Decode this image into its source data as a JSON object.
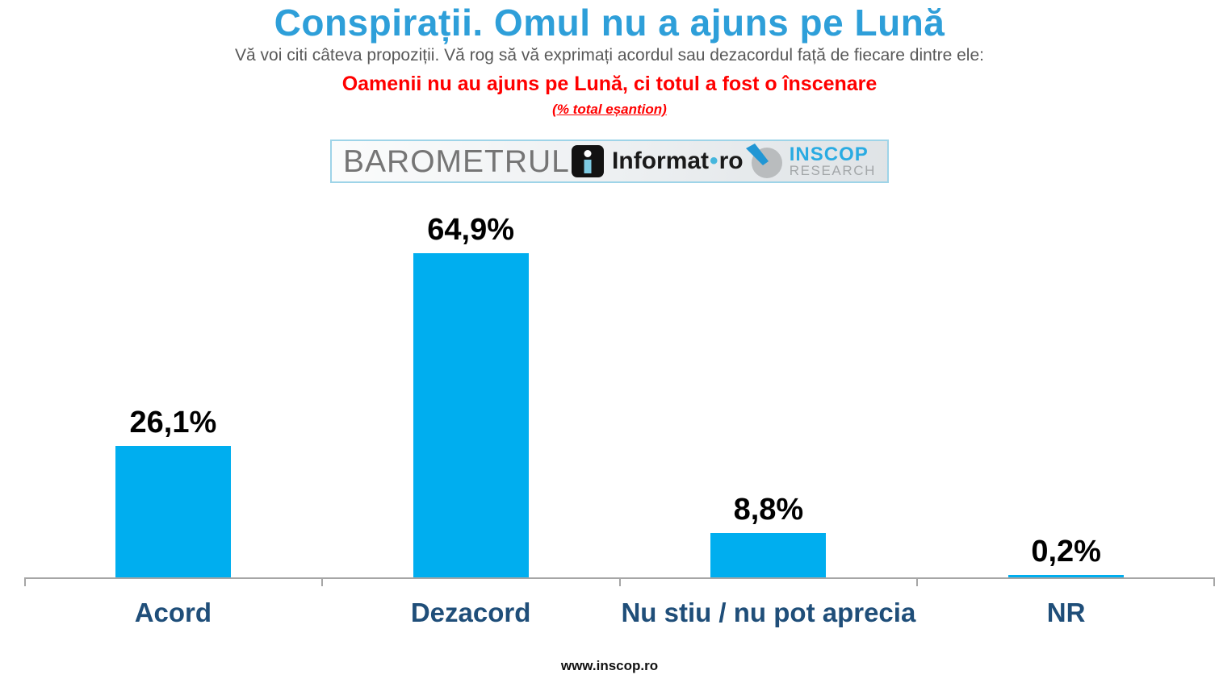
{
  "header": {
    "title": "Conspirații. Omul nu a ajuns pe Lună",
    "subtitle": "Vă voi citi câteva propoziții. Vă rog să vă exprimați acordul sau dezacordul față de fiecare dintre ele:",
    "statement": "Oamenii nu au ajuns pe Lună, ci totul a fost o înscenare",
    "sample_note": "(% total eșantion)"
  },
  "logos": {
    "barometrul": "BAROMETRUL",
    "informat": {
      "name": "Informat",
      "separator": "•",
      "tld": "ro"
    },
    "inscop": {
      "line1": "INSCOP",
      "line2": "RESEARCH"
    }
  },
  "chart_data": {
    "type": "bar",
    "categories": [
      "Acord",
      "Dezacord",
      "Nu stiu / nu pot aprecia",
      "NR"
    ],
    "values": [
      26.1,
      64.9,
      8.8,
      0.2
    ],
    "value_labels": [
      "26,1%",
      "64,9%",
      "8,8%",
      "0,2%"
    ],
    "title": "Conspirații. Omul nu a ajuns pe Lună",
    "xlabel": "",
    "ylabel": "% total eșantion",
    "ylim": [
      0,
      72
    ],
    "grid": false,
    "legend": "none",
    "bar_color": "#00AEEF",
    "axis_color": "#A6A6A6",
    "value_label_color": "#000000",
    "category_label_color": "#1F4E79"
  },
  "colors": {
    "title_blue": "#2E9FD9",
    "statement_red": "#FF0000",
    "subtitle_gray": "#595959",
    "inscop_blue": "#29ABE2"
  },
  "footer": {
    "url": "www.inscop.ro"
  }
}
